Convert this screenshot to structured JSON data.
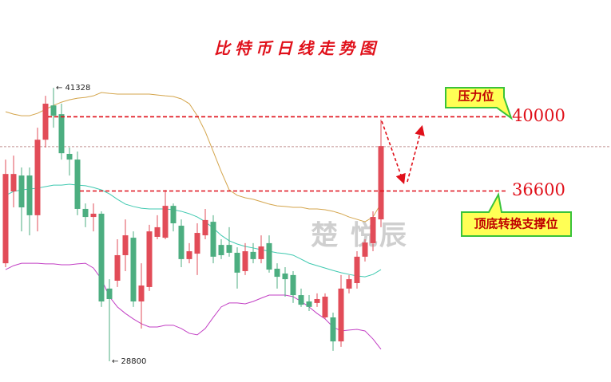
{
  "chart_data": {
    "type": "candlestick",
    "title": "比特币日线走势图",
    "ylim": [
      27850,
      45350
    ],
    "up_color": "#e24c58",
    "down_color": "#4cae80",
    "open": [
      33290,
      36580,
      37310,
      37310,
      35490,
      38950,
      40520,
      40120,
      38300,
      38040,
      35780,
      35410,
      35560,
      32130,
      32490,
      33660,
      34460,
      31540,
      32200,
      34500,
      34460,
      35920,
      35010,
      33480,
      33730,
      34570,
      35190,
      34130,
      34130,
      33770,
      32930,
      33810,
      33480,
      34210,
      33040,
      32820,
      32750,
      31830,
      31540,
      31470,
      30810,
      30810,
      29710,
      32130,
      32380,
      33590,
      34210,
      35300
    ],
    "high": [
      38040,
      38220,
      37680,
      37680,
      39500,
      40960,
      41328,
      40600,
      38590,
      38410,
      36030,
      36030,
      35670,
      32560,
      34390,
      35300,
      34750,
      33290,
      35050,
      35490,
      36650,
      36030,
      35300,
      34210,
      35120,
      35780,
      35490,
      34390,
      34940,
      34020,
      34210,
      34210,
      34570,
      34570,
      33290,
      33110,
      32930,
      32130,
      31830,
      31910,
      31910,
      31030,
      32750,
      32750,
      33840,
      34390,
      35670,
      39870
    ],
    "low": [
      33110,
      35850,
      34750,
      34570,
      34750,
      38590,
      39500,
      38040,
      37310,
      35490,
      34940,
      34750,
      31290,
      28800,
      32200,
      32930,
      31290,
      30300,
      32020,
      34390,
      34390,
      34750,
      33110,
      33290,
      32750,
      34390,
      33290,
      33480,
      33590,
      32130,
      32750,
      33290,
      33290,
      32860,
      32130,
      31760,
      31470,
      31290,
      31100,
      31290,
      30740,
      29280,
      29460,
      31910,
      32130,
      33370,
      33840,
      34940
    ],
    "close": [
      37380,
      37380,
      35850,
      35490,
      38950,
      40600,
      40050,
      38330,
      38040,
      35780,
      35410,
      35560,
      31540,
      31650,
      33660,
      34570,
      31540,
      32270,
      34750,
      34940,
      35920,
      35120,
      33480,
      33840,
      34680,
      35270,
      33590,
      33660,
      33770,
      32860,
      33840,
      33480,
      34060,
      33000,
      32670,
      32560,
      31830,
      31390,
      31290,
      31650,
      31760,
      29710,
      32130,
      32560,
      33590,
      34240,
      35410,
      38660
    ],
    "bands": [
      {
        "color": "#d4a54c",
        "values": [
          40230,
          40120,
          40050,
          40050,
          40160,
          40340,
          40520,
          40670,
          40780,
          40850,
          40890,
          40960,
          41110,
          41070,
          41040,
          41040,
          41040,
          41040,
          41040,
          41000,
          40960,
          40930,
          40820,
          40600,
          40050,
          39320,
          38410,
          37490,
          36650,
          36400,
          36290,
          36220,
          36110,
          36000,
          35920,
          35890,
          35850,
          35850,
          35780,
          35780,
          35740,
          35670,
          35560,
          35410,
          35300,
          35190,
          35410,
          36030
        ]
      },
      {
        "color": "#3fc9b0",
        "values": [
          36400,
          36580,
          36650,
          36690,
          36730,
          36800,
          36870,
          36870,
          36910,
          36870,
          36840,
          36760,
          36650,
          36470,
          36220,
          36000,
          35890,
          35810,
          35780,
          35780,
          35780,
          35740,
          35670,
          35560,
          35410,
          35190,
          34900,
          34570,
          34320,
          34170,
          34060,
          33990,
          33910,
          33840,
          33770,
          33730,
          33660,
          33480,
          33290,
          33180,
          33070,
          32960,
          32860,
          32780,
          32710,
          32670,
          32780,
          33000
        ]
      },
      {
        "color": "#c23fc4",
        "values": [
          33000,
          33180,
          33290,
          33290,
          33290,
          33260,
          33260,
          33220,
          33220,
          33260,
          33290,
          33070,
          32560,
          31760,
          31290,
          30990,
          30740,
          30520,
          30370,
          30370,
          30450,
          30450,
          30300,
          30080,
          30010,
          30300,
          30810,
          31290,
          31470,
          31470,
          31430,
          31540,
          31690,
          31830,
          31830,
          31830,
          31760,
          31540,
          31290,
          30990,
          30740,
          30370,
          30190,
          30230,
          30260,
          30190,
          29820,
          29350
        ]
      }
    ],
    "price_line": 38630,
    "levels": [
      40000,
      36600
    ],
    "level_color": "#e0101a",
    "extremes": [
      {
        "value": 41328,
        "label": "← 41328"
      },
      {
        "value": 28800,
        "label": "← 28800"
      }
    ],
    "callouts": [
      "压力位",
      "顶底转换支撑位"
    ],
    "watermark": "楚 悦辰"
  }
}
